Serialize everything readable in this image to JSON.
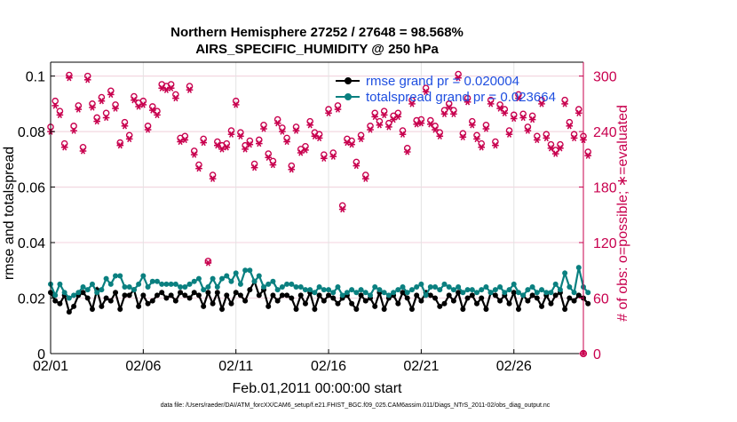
{
  "chart_data": {
    "type": "line",
    "title_line1": "Northern Hemisphere 27252 / 27648 = 98.568%",
    "title_line2": "AIRS_SPECIFIC_HUMIDITY @ 250 hPa",
    "xlabel": "Feb.01,2011 00:00:00 start",
    "ylabel_left": "rmse and totalspread",
    "ylabel_right": "# of obs: o=possible; ∗=evaluated",
    "footnote": "data file: /Users/raeder/DAI/ATM_forcXX/CAM6_setup/f.e21.FHIST_BGC.f09_025.CAM6assim.011/Diags_NTrS_2011-02/obs_diag_output.nc",
    "x_range_days": [
      0,
      28.75
    ],
    "ylim_left": [
      0,
      0.105
    ],
    "ylim_right": [
      0,
      315
    ],
    "x_ticks": [
      {
        "day": 0,
        "label": "02/01"
      },
      {
        "day": 5,
        "label": "02/06"
      },
      {
        "day": 10,
        "label": "02/11"
      },
      {
        "day": 15,
        "label": "02/16"
      },
      {
        "day": 20,
        "label": "02/21"
      },
      {
        "day": 25,
        "label": "02/26"
      }
    ],
    "y_ticks_left": [
      {
        "value": 0,
        "label": "0"
      },
      {
        "value": 0.02,
        "label": "0.02"
      },
      {
        "value": 0.04,
        "label": "0.04"
      },
      {
        "value": 0.06,
        "label": "0.06"
      },
      {
        "value": 0.08,
        "label": "0.08"
      },
      {
        "value": 0.1,
        "label": "0.1"
      }
    ],
    "y_ticks_right": [
      {
        "value": 0,
        "label": "0"
      },
      {
        "value": 60,
        "label": "60"
      },
      {
        "value": 120,
        "label": "120"
      },
      {
        "value": 180,
        "label": "180"
      },
      {
        "value": 240,
        "label": "240"
      },
      {
        "value": 300,
        "label": "300"
      }
    ],
    "grid": true,
    "legend_position": "top-right",
    "colors": {
      "rmse": "#000000",
      "spread": "#0a8080",
      "obs": "#c8004e",
      "legend_text": "#1f4fe0"
    },
    "legend": [
      {
        "key": "rmse",
        "label": "rmse grand pr = 0.020004"
      },
      {
        "key": "spread",
        "label": "totalspread grand pr = 0.023664"
      }
    ],
    "series": [
      {
        "name": "rmse",
        "axis": "left",
        "start_day": 0,
        "step_days": 0.25,
        "values": [
          0.022,
          0.019,
          0.018,
          0.021,
          0.015,
          0.017,
          0.021,
          0.022,
          0.02,
          0.016,
          0.023,
          0.017,
          0.02,
          0.019,
          0.022,
          0.016,
          0.021,
          0.021,
          0.023,
          0.017,
          0.021,
          0.018,
          0.019,
          0.021,
          0.022,
          0.02,
          0.021,
          0.019,
          0.022,
          0.021,
          0.02,
          0.022,
          0.021,
          0.017,
          0.022,
          0.018,
          0.022,
          0.016,
          0.021,
          0.018,
          0.022,
          0.021,
          0.019,
          0.023,
          0.026,
          0.021,
          0.023,
          0.017,
          0.021,
          0.019,
          0.021,
          0.021,
          0.02,
          0.016,
          0.021,
          0.018,
          0.022,
          0.016,
          0.021,
          0.019,
          0.021,
          0.02,
          0.018,
          0.02,
          0.021,
          0.018,
          0.016,
          0.021,
          0.019,
          0.02,
          0.017,
          0.022,
          0.016,
          0.02,
          0.021,
          0.018,
          0.022,
          0.02,
          0.016,
          0.021,
          0.019,
          0.022,
          0.021,
          0.02,
          0.017,
          0.018,
          0.021,
          0.019,
          0.022,
          0.016,
          0.02,
          0.021,
          0.018,
          0.02,
          0.016,
          0.022,
          0.021,
          0.019,
          0.021,
          0.018,
          0.022,
          0.016,
          0.021,
          0.019,
          0.021,
          0.02,
          0.017,
          0.021,
          0.018,
          0.021,
          0.022,
          0.016,
          0.02,
          0.019,
          0.021,
          0.02,
          0.018
        ]
      },
      {
        "name": "totalspread",
        "axis": "left",
        "start_day": 0,
        "step_days": 0.25,
        "values": [
          0.025,
          0.021,
          0.025,
          0.022,
          0.02,
          0.021,
          0.022,
          0.024,
          0.023,
          0.025,
          0.022,
          0.023,
          0.027,
          0.025,
          0.028,
          0.028,
          0.024,
          0.024,
          0.023,
          0.025,
          0.028,
          0.024,
          0.026,
          0.026,
          0.025,
          0.025,
          0.025,
          0.025,
          0.024,
          0.024,
          0.025,
          0.026,
          0.027,
          0.023,
          0.024,
          0.027,
          0.024,
          0.027,
          0.028,
          0.026,
          0.029,
          0.025,
          0.03,
          0.03,
          0.026,
          0.028,
          0.024,
          0.025,
          0.026,
          0.023,
          0.024,
          0.025,
          0.025,
          0.024,
          0.024,
          0.023,
          0.023,
          0.022,
          0.024,
          0.023,
          0.023,
          0.022,
          0.024,
          0.021,
          0.022,
          0.023,
          0.022,
          0.023,
          0.022,
          0.021,
          0.024,
          0.023,
          0.022,
          0.021,
          0.022,
          0.023,
          0.024,
          0.022,
          0.023,
          0.024,
          0.025,
          0.021,
          0.024,
          0.024,
          0.023,
          0.025,
          0.024,
          0.023,
          0.024,
          0.022,
          0.023,
          0.023,
          0.022,
          0.023,
          0.024,
          0.022,
          0.023,
          0.024,
          0.022,
          0.023,
          0.025,
          0.022,
          0.021,
          0.023,
          0.024,
          0.022,
          0.023,
          0.022,
          0.022,
          0.025,
          0.023,
          0.029,
          0.024,
          0.022,
          0.031,
          0.024,
          0.022
        ]
      },
      {
        "name": "obs_possible",
        "axis": "right",
        "start_day": 0,
        "step_days": 0.25,
        "marker": "o",
        "values": [
          245,
          273,
          262,
          227,
          301,
          246,
          268,
          223,
          300,
          270,
          255,
          277,
          260,
          284,
          269,
          228,
          250,
          236,
          278,
          271,
          273,
          246,
          267,
          262,
          291,
          289,
          291,
          280,
          233,
          235,
          289,
          219,
          204,
          232,
          100,
          193,
          229,
          225,
          227,
          241,
          273,
          239,
          225,
          230,
          205,
          231,
          247,
          216,
          208,
          253,
          244,
          233,
          203,
          245,
          221,
          224,
          251,
          239,
          237,
          215,
          264,
          217,
          268,
          160,
          232,
          230,
          207,
          236,
          193,
          246,
          260,
          251,
          262,
          249,
          257,
          260,
          241,
          222,
          274,
          252,
          253,
          287,
          252,
          246,
          239,
          263,
          270,
          263,
          302,
          238,
          276,
          251,
          236,
          227,
          247,
          274,
          229,
          269,
          264,
          241,
          258,
          280,
          259,
          245,
          257,
          235,
          274,
          237,
          226,
          220,
          226,
          274,
          250,
          237,
          264,
          235,
          218
        ]
      },
      {
        "name": "obs_evaluated",
        "axis": "right",
        "start_day": 0,
        "step_days": 0.25,
        "marker": "*",
        "values": [
          240,
          268,
          258,
          223,
          298,
          241,
          264,
          219,
          296,
          266,
          251,
          273,
          255,
          280,
          265,
          225,
          246,
          232,
          274,
          267,
          269,
          242,
          263,
          258,
          287,
          285,
          287,
          276,
          229,
          231,
          285,
          215,
          200,
          228,
          98,
          189,
          225,
          221,
          223,
          237,
          269,
          235,
          221,
          226,
          201,
          227,
          243,
          212,
          204,
          249,
          240,
          229,
          199,
          241,
          217,
          220,
          247,
          235,
          233,
          211,
          260,
          213,
          264,
          156,
          228,
          226,
          203,
          232,
          189,
          242,
          256,
          247,
          258,
          245,
          253,
          256,
          237,
          218,
          270,
          248,
          249,
          283,
          248,
          242,
          235,
          259,
          266,
          259,
          298,
          234,
          272,
          247,
          232,
          223,
          243,
          270,
          225,
          265,
          260,
          237,
          254,
          276,
          255,
          241,
          253,
          231,
          270,
          233,
          222,
          216,
          222,
          270,
          246,
          233,
          260,
          231,
          214
        ]
      }
    ],
    "outlier_points": [
      {
        "series": "obs_evaluated",
        "day": 28.75,
        "value": 0
      }
    ]
  }
}
